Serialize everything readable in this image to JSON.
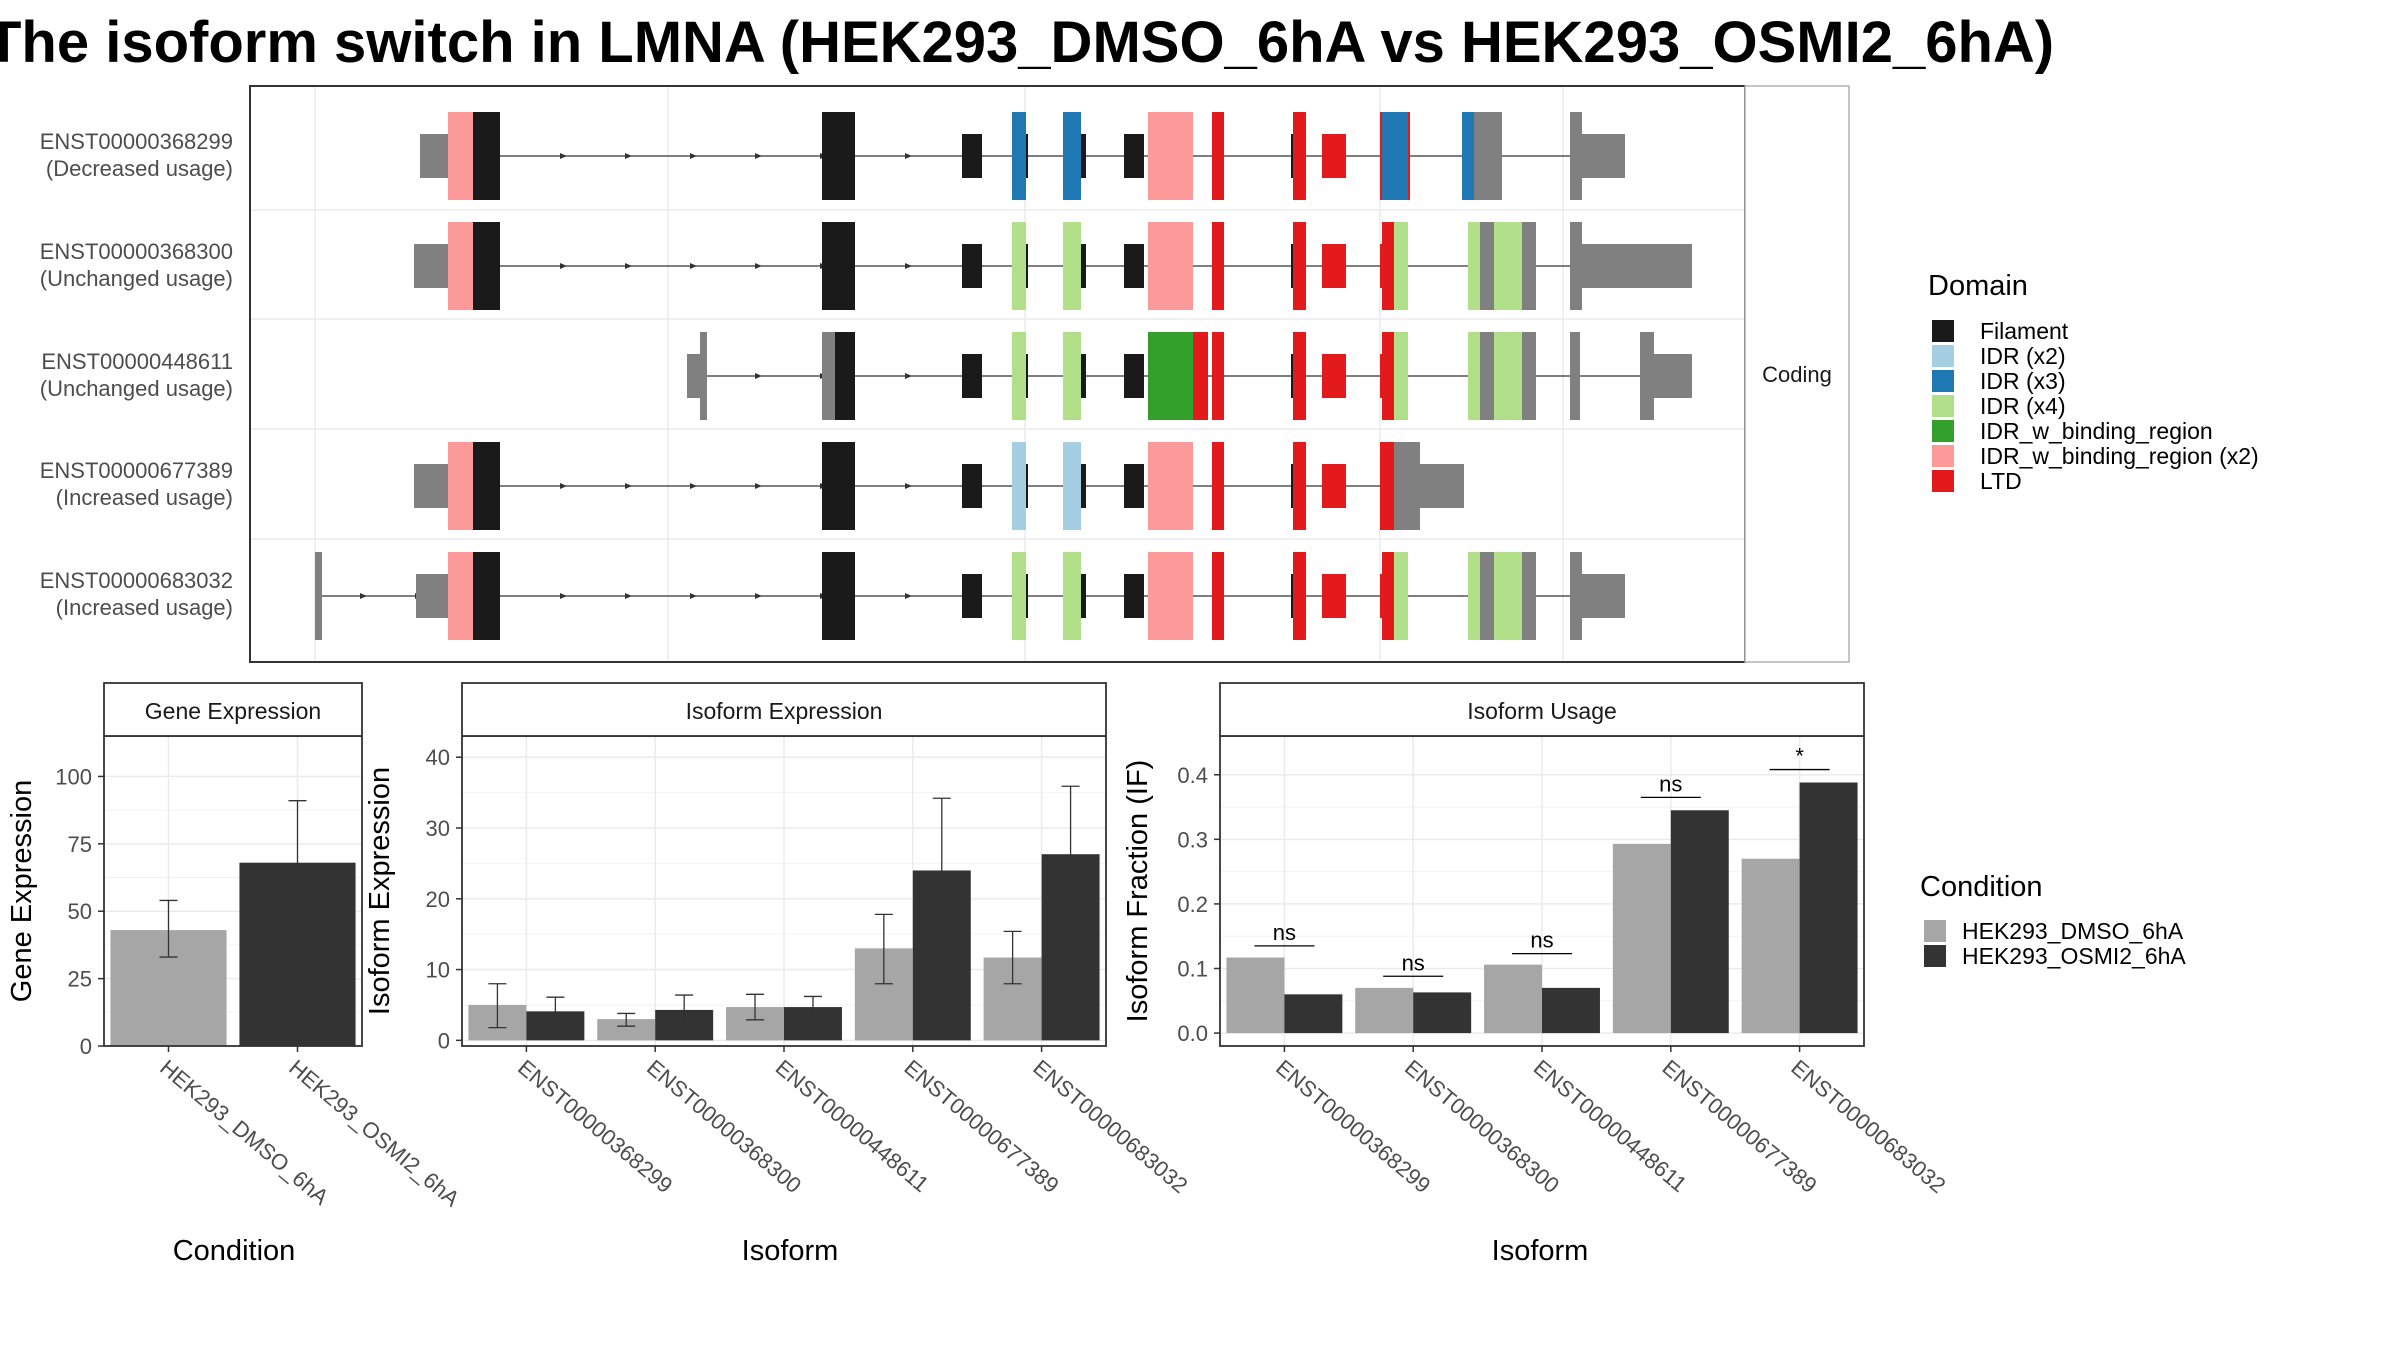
{
  "title": "The isoform switch in LMNA (HEK293_DMSO_6hA vs HEK293_OSMI2_6hA)",
  "colors": {
    "condition_dmso": "#A6A6A6",
    "condition_osmi": "#333333",
    "utr": "#808080",
    "Filament": "#1A1A1A",
    "IDR (x2)": "#A6CEE3",
    "IDR (x3)": "#1F78B4",
    "IDR (x4)": "#B2DF8A",
    "IDR_w_binding_region": "#33A02C",
    "IDR_w_binding_region (x2)": "#FB9A99",
    "LTD": "#E31A1C"
  },
  "structure_panel": {
    "strip_label": "Coding",
    "transcripts": [
      {
        "label": "ENST00000368299",
        "usage": "(Decreased usage)"
      },
      {
        "label": "ENST00000368300",
        "usage": "(Unchanged usage)"
      },
      {
        "label": "ENST00000448611",
        "usage": "(Unchanged usage)"
      },
      {
        "label": "ENST00000677389",
        "usage": "(Increased usage)"
      },
      {
        "label": "ENST00000683032",
        "usage": "(Increased usage)"
      }
    ],
    "domain_legend": {
      "title": "Domain",
      "entries": [
        "Filament",
        "IDR (x2)",
        "IDR (x3)",
        "IDR (x4)",
        "IDR_w_binding_region",
        "IDR_w_binding_region (x2)",
        "LTD"
      ]
    }
  },
  "condition_legend": {
    "title": "Condition",
    "entries": [
      "HEK293_DMSO_6hA",
      "HEK293_OSMI2_6hA"
    ]
  },
  "chart_data": [
    {
      "type": "bar",
      "title": "Gene Expression",
      "xlabel": "Condition",
      "ylabel": "Gene Expression",
      "categories": [
        "HEK293_DMSO_6hA",
        "HEK293_OSMI2_6hA"
      ],
      "values": [
        43,
        68
      ],
      "error_low": [
        33,
        45
      ],
      "error_high": [
        54,
        91
      ],
      "ylim": [
        0,
        115
      ],
      "yticks": [
        0,
        25,
        50,
        75,
        100
      ]
    },
    {
      "type": "bar",
      "title": "Isoform Expression",
      "xlabel": "Isoform",
      "ylabel": "Isoform Expression",
      "categories": [
        "ENST00000368299",
        "ENST00000368300",
        "ENST00000448611",
        "ENST00000677389",
        "ENST00000683032"
      ],
      "series": [
        {
          "name": "HEK293_DMSO_6hA",
          "values": [
            5.0,
            3.0,
            4.7,
            13.0,
            11.7
          ],
          "error_low": [
            1.8,
            2.0,
            2.9,
            8.0,
            8.0
          ],
          "error_high": [
            8.0,
            3.8,
            6.5,
            17.8,
            15.4
          ]
        },
        {
          "name": "HEK293_OSMI2_6hA",
          "values": [
            4.1,
            4.3,
            4.7,
            24.0,
            26.3
          ],
          "error_low": [
            2.1,
            2.3,
            3.2,
            13.8,
            16.7
          ],
          "error_high": [
            6.1,
            6.4,
            6.2,
            34.2,
            35.9
          ]
        }
      ],
      "ylim": [
        -0.8,
        43
      ],
      "yticks": [
        0,
        10,
        20,
        30,
        40
      ]
    },
    {
      "type": "bar",
      "title": "Isoform Usage",
      "xlabel": "Isoform",
      "ylabel": "Isoform Fraction (IF)",
      "categories": [
        "ENST00000368299",
        "ENST00000368300",
        "ENST00000448611",
        "ENST00000677389",
        "ENST00000683032"
      ],
      "series": [
        {
          "name": "HEK293_DMSO_6hA",
          "values": [
            0.117,
            0.07,
            0.106,
            0.293,
            0.27
          ]
        },
        {
          "name": "HEK293_OSMI2_6hA",
          "values": [
            0.06,
            0.063,
            0.07,
            0.345,
            0.388
          ]
        }
      ],
      "significance": [
        "ns",
        "ns",
        "ns",
        "ns",
        "*"
      ],
      "significance_y": [
        0.135,
        0.088,
        0.123,
        0.365,
        0.408
      ],
      "ylim": [
        -0.02,
        0.46
      ],
      "yticks": [
        0.0,
        0.1,
        0.2,
        0.3,
        0.4
      ]
    }
  ]
}
